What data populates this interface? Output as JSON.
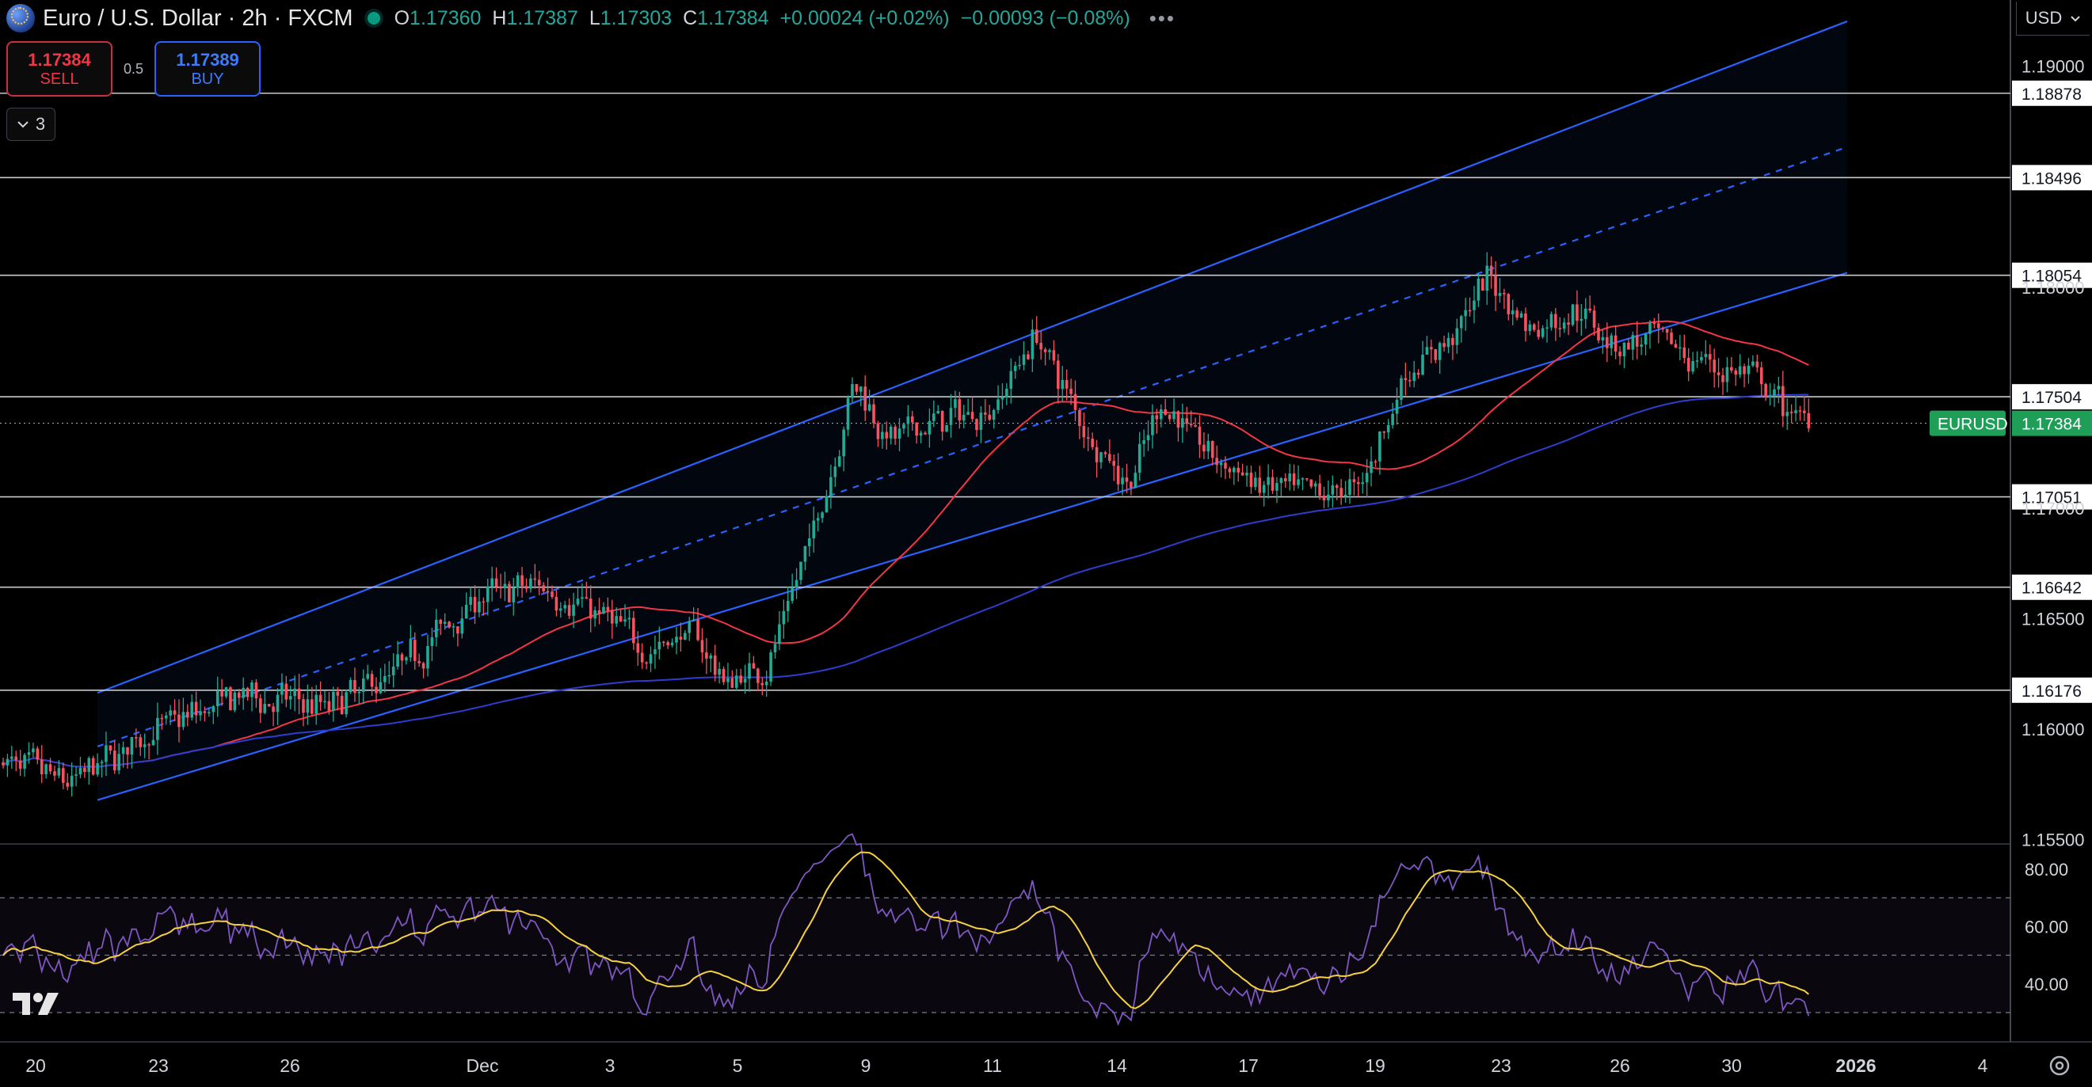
{
  "header": {
    "symbol_title": "Euro / U.S. Dollar · 2h · FXCM",
    "open_label": "O",
    "open": "1.17360",
    "high_label": "H",
    "high": "1.17387",
    "low_label": "L",
    "low": "1.17303",
    "close_label": "C",
    "close": "1.17384",
    "change": "+0.00024 (+0.02%)",
    "change2": "−0.00093 (−0.08%)",
    "more_icon": "more-dots-icon"
  },
  "trade": {
    "sell_price": "1.17384",
    "sell_label": "SELL",
    "spread": "0.5",
    "buy_price": "1.17389",
    "buy_label": "BUY"
  },
  "indicators_toggle": {
    "count": "3"
  },
  "currency": "USD",
  "colors": {
    "up": "#22ab94",
    "down": "#f7525f",
    "channel": "#2962ff",
    "ma_fast": "#f23645",
    "ma_slow": "#2f3dcf",
    "rsi": "#7e57c2",
    "rsi_ma": "#f5d142",
    "current_tag": "#1e9e57"
  },
  "chart_data": {
    "type": "candlestick",
    "symbol": "EURUSD",
    "current_price": "1.17384",
    "y_axis_ticks": [
      "1.19000",
      "1.18000",
      "1.17000",
      "1.16500",
      "1.16000",
      "1.15500"
    ],
    "horizontal_levels": [
      "1.18878",
      "1.18496",
      "1.18054",
      "1.17504",
      "1.17051",
      "1.16642",
      "1.16176"
    ],
    "x_axis_ticks": [
      "20",
      "23",
      "26",
      "Dec",
      "3",
      "5",
      "9",
      "11",
      "14",
      "17",
      "19",
      "23",
      "26",
      "30",
      "2026",
      "4"
    ],
    "ylim": [
      1.1548,
      1.193
    ],
    "rsi": {
      "ticks": [
        "80.00",
        "60.00",
        "40.00"
      ],
      "ylim": [
        22,
        86
      ],
      "bands": [
        70,
        50,
        30
      ]
    },
    "trend_points": [
      [
        0,
        1.1585
      ],
      [
        15,
        1.1575
      ],
      [
        35,
        1.16
      ],
      [
        55,
        1.1615
      ],
      [
        75,
        1.161
      ],
      [
        90,
        1.1625
      ],
      [
        110,
        1.166
      ],
      [
        125,
        1.1665
      ],
      [
        140,
        1.165
      ],
      [
        150,
        1.1635
      ],
      [
        160,
        1.1645
      ],
      [
        168,
        1.162
      ],
      [
        178,
        1.163
      ],
      [
        190,
        1.17
      ],
      [
        198,
        1.176
      ],
      [
        206,
        1.173
      ],
      [
        218,
        1.174
      ],
      [
        230,
        1.1745
      ],
      [
        240,
        1.178
      ],
      [
        252,
        1.1735
      ],
      [
        262,
        1.171
      ],
      [
        270,
        1.175
      ],
      [
        280,
        1.1725
      ],
      [
        292,
        1.171
      ],
      [
        304,
        1.1705
      ],
      [
        316,
        1.171
      ],
      [
        326,
        1.176
      ],
      [
        336,
        1.1775
      ],
      [
        346,
        1.1805
      ],
      [
        356,
        1.178
      ],
      [
        366,
        1.179
      ],
      [
        376,
        1.1775
      ],
      [
        386,
        1.1775
      ],
      [
        396,
        1.1765
      ],
      [
        406,
        1.176
      ],
      [
        414,
        1.1745
      ],
      [
        422,
        1.1738
      ]
    ]
  }
}
